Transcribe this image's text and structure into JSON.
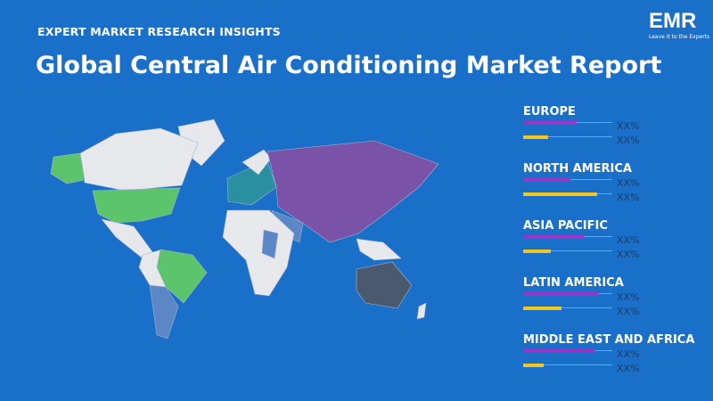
{
  "header": {
    "kicker": "EXPERT MARKET RESEARCH INSIGHTS",
    "title": "Global Central Air Conditioning Market Report"
  },
  "logo": {
    "mark": "EMR",
    "tagline": "Leave it to the Experts"
  },
  "regions": [
    {
      "name": "EUROPE",
      "labels": [
        "XX%",
        "XX%"
      ]
    },
    {
      "name": "NORTH AMERICA",
      "labels": [
        "XX%",
        "XX%"
      ]
    },
    {
      "name": "ASIA PACIFIC",
      "labels": [
        "XX%",
        "XX%"
      ]
    },
    {
      "name": "LATIN AMERICA",
      "labels": [
        "XX%",
        "XX%"
      ]
    },
    {
      "name": "MIDDLE EAST AND AFRICA",
      "labels": [
        "XX%",
        "XX%"
      ]
    }
  ]
}
